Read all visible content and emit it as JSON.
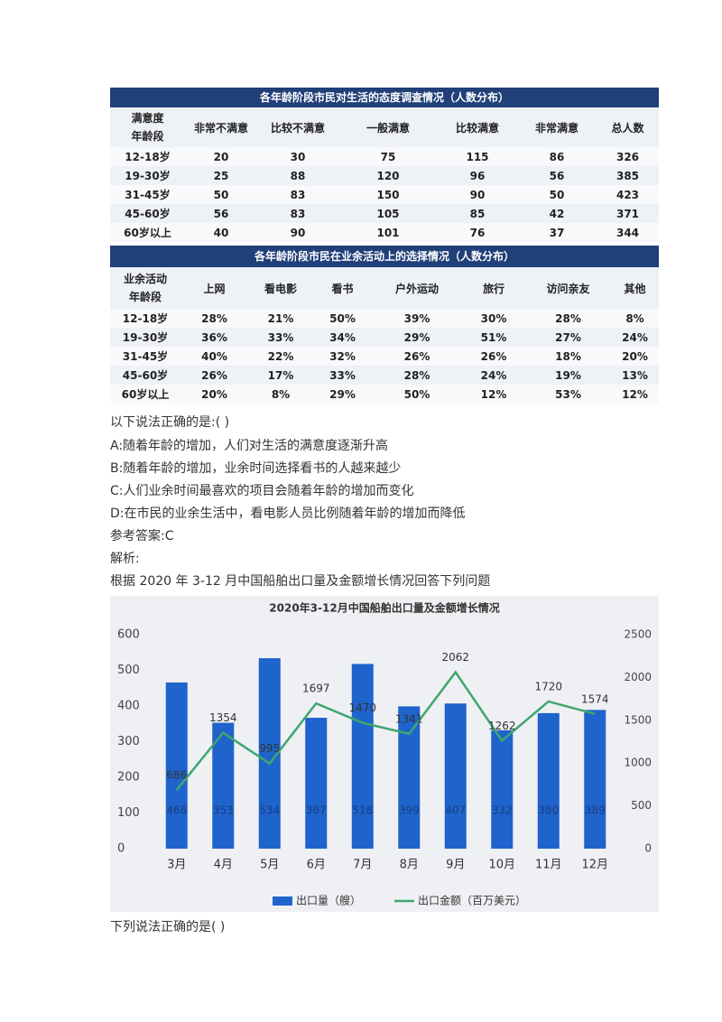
{
  "table1": {
    "title": "各年龄阶段市民对生活的态度调查情况（人数分布）",
    "corner": [
      "满意度",
      "年龄段"
    ],
    "columns": [
      "非常不满意",
      "比较不满意",
      "一般满意",
      "比较满意",
      "非常满意",
      "总人数"
    ],
    "rows": [
      {
        "label": "12-18岁",
        "values": [
          20,
          30,
          75,
          115,
          86,
          326
        ]
      },
      {
        "label": "19-30岁",
        "values": [
          25,
          88,
          120,
          96,
          56,
          385
        ]
      },
      {
        "label": "31-45岁",
        "values": [
          50,
          83,
          150,
          90,
          50,
          423
        ]
      },
      {
        "label": "45-60岁",
        "values": [
          56,
          83,
          105,
          85,
          42,
          371
        ]
      },
      {
        "label": "60岁以上",
        "values": [
          40,
          90,
          101,
          76,
          37,
          344
        ]
      }
    ]
  },
  "table2": {
    "title": "各年龄阶段市民在业余活动上的选择情况（人数分布）",
    "corner": [
      "业余活动",
      "年龄段"
    ],
    "columns": [
      "上网",
      "看电影",
      "看书",
      "户外运动",
      "旅行",
      "访问亲友",
      "其他"
    ],
    "rows": [
      {
        "label": "12-18岁",
        "values": [
          "28%",
          "21%",
          "50%",
          "39%",
          "30%",
          "28%",
          "8%"
        ]
      },
      {
        "label": "19-30岁",
        "values": [
          "36%",
          "33%",
          "34%",
          "29%",
          "51%",
          "27%",
          "24%"
        ]
      },
      {
        "label": "31-45岁",
        "values": [
          "40%",
          "22%",
          "32%",
          "26%",
          "26%",
          "18%",
          "20%"
        ]
      },
      {
        "label": "45-60岁",
        "values": [
          "26%",
          "17%",
          "33%",
          "28%",
          "24%",
          "19%",
          "13%"
        ]
      },
      {
        "label": "60岁以上",
        "values": [
          "20%",
          "8%",
          "29%",
          "50%",
          "12%",
          "53%",
          "12%"
        ]
      }
    ]
  },
  "question1": {
    "prompt": "以下说法正确的是:( )",
    "options": [
      "A:随着年龄的增加，人们对生活的满意度逐渐升高",
      "B:随着年龄的增加，业余时间选择看书的人越来越少",
      "C:人们业余时间最喜欢的项目会随着年龄的增加而变化",
      "D:在市民的业余生活中，看电影人员比例随着年龄的增加而降低"
    ],
    "answer": "参考答案:C",
    "analysis": "解析:"
  },
  "intro": "根据 2020 年 3-12 月中国船舶出口量及金额增长情况回答下列问题",
  "chart_data": {
    "type": "bar",
    "title": "2020年3-12月中国船舶出口量及金额增长情况",
    "categories": [
      "3月",
      "4月",
      "5月",
      "6月",
      "7月",
      "8月",
      "9月",
      "10月",
      "11月",
      "12月"
    ],
    "series": [
      {
        "name": "出口量（艘）",
        "type": "bar",
        "color": "#1f63cc",
        "values": [
          466,
          353,
          534,
          367,
          518,
          399,
          407,
          332,
          380,
          389
        ]
      },
      {
        "name": "出口金额（百万美元）",
        "type": "line",
        "axis": "y2",
        "color": "#3fa66e",
        "values": [
          686,
          1354,
          995,
          1697,
          1470,
          1341,
          2062,
          1262,
          1720,
          1574
        ]
      }
    ],
    "ylim": [
      0,
      600
    ],
    "yticks": [
      0,
      100,
      200,
      300,
      400,
      500,
      600
    ],
    "y2lim": [
      0,
      2500
    ],
    "y2ticks": [
      0,
      500,
      1000,
      1500,
      2000,
      2500
    ],
    "legend": "bottom"
  },
  "question2": "下列说法正确的是( )"
}
